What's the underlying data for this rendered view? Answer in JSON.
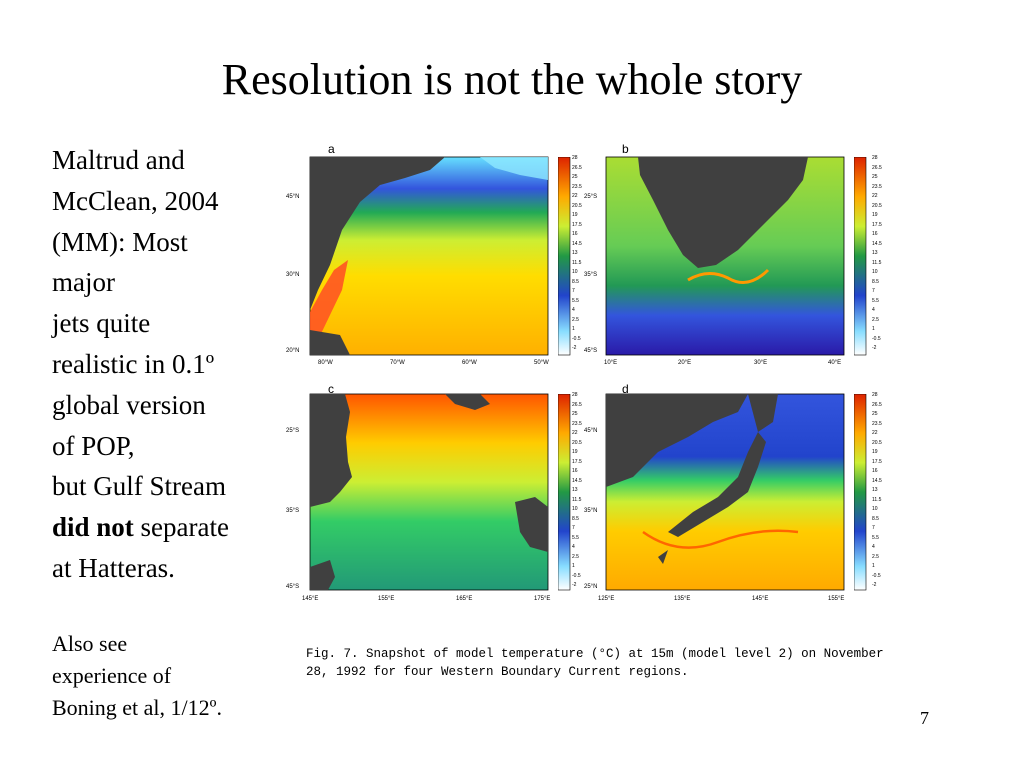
{
  "slide": {
    "title": "Resolution is not the whole story",
    "body_lines": [
      "Maltrud and",
      "McClean, 2004",
      "(MM): Most",
      "major",
      "jets quite",
      "realistic in 0.1º",
      "global version",
      "of POP,",
      "but Gulf Stream"
    ],
    "body_bold": "did not",
    "body_after_bold": " separate",
    "body_last": "at Hatteras.",
    "note_lines": [
      "Also see",
      "experience of",
      "Boning et al, 1/12º."
    ],
    "page_number": "7"
  },
  "figure": {
    "caption_lines": [
      "Fig. 7. Snapshot of model temperature (°C) at 15m (model level 2) on November",
      "28, 1992 for four Western Boundary Current regions."
    ],
    "panels": [
      {
        "letter": "a",
        "x_ticks": [
          "80°W",
          "70°W",
          "60°W",
          "50°W"
        ],
        "y_ticks": [
          "45°N",
          "30°N",
          "20°N"
        ]
      },
      {
        "letter": "b",
        "x_ticks": [
          "10°E",
          "20°E",
          "30°E",
          "40°E"
        ],
        "y_ticks": [
          "25°S",
          "35°S",
          "45°S"
        ]
      },
      {
        "letter": "c",
        "x_ticks": [
          "145°E",
          "155°E",
          "165°E",
          "175°E"
        ],
        "y_ticks": [
          "25°S",
          "35°S",
          "45°S"
        ]
      },
      {
        "letter": "d",
        "x_ticks": [
          "125°E",
          "135°E",
          "145°E",
          "155°E"
        ],
        "y_ticks": [
          "45°N",
          "35°N",
          "25°N"
        ]
      }
    ],
    "colorbar_labels": [
      "28",
      "26.5",
      "25",
      "23.5",
      "22",
      "20.5",
      "19",
      "17.5",
      "16",
      "14.5",
      "13",
      "11.5",
      "10",
      "8.5",
      "7",
      "5.5",
      "4",
      "2.5",
      "1",
      "-0.5",
      "-2"
    ],
    "colors": {
      "land": "#404040",
      "warm": "#ff3300",
      "cold": "#2a1aa8"
    }
  }
}
